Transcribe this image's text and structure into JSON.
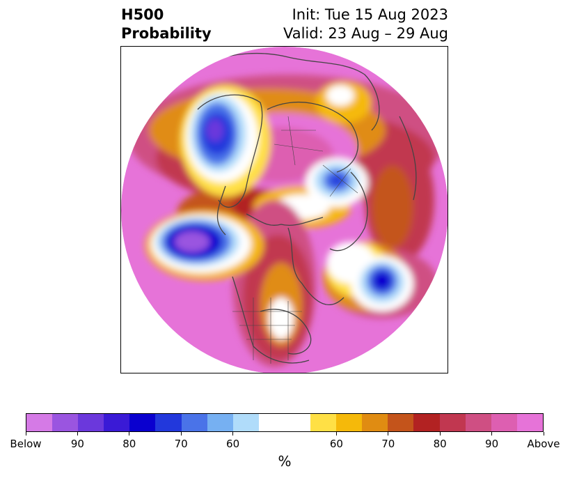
{
  "title": {
    "left_line1": "H500",
    "left_line2": "Probability",
    "right_line1": "Init: Tue 15 Aug 2023",
    "right_line2": "Valid: 23 Aug – 29 Aug"
  },
  "colorbar": {
    "unit": "%",
    "ticks": [
      "Below",
      "90",
      "80",
      "70",
      "60",
      "60",
      "70",
      "80",
      "90",
      "Above"
    ],
    "below_colors": [
      "#d57ae6",
      "#9a55e0",
      "#6b38dc",
      "#3a1ad6",
      "#0a00cf",
      "#2238dc",
      "#4a73e8",
      "#76b0f2",
      "#b0dcfa"
    ],
    "neutral_color": "#ffffff",
    "above_colors": [
      "#ffe045",
      "#f5b90a",
      "#e08c12",
      "#c4541b",
      "#b22222",
      "#c13750",
      "#cf4f83",
      "#dd5fb1",
      "#e673d8"
    ]
  },
  "map": {
    "projection": "north polar stereographic",
    "background_color": "#e673d8"
  }
}
